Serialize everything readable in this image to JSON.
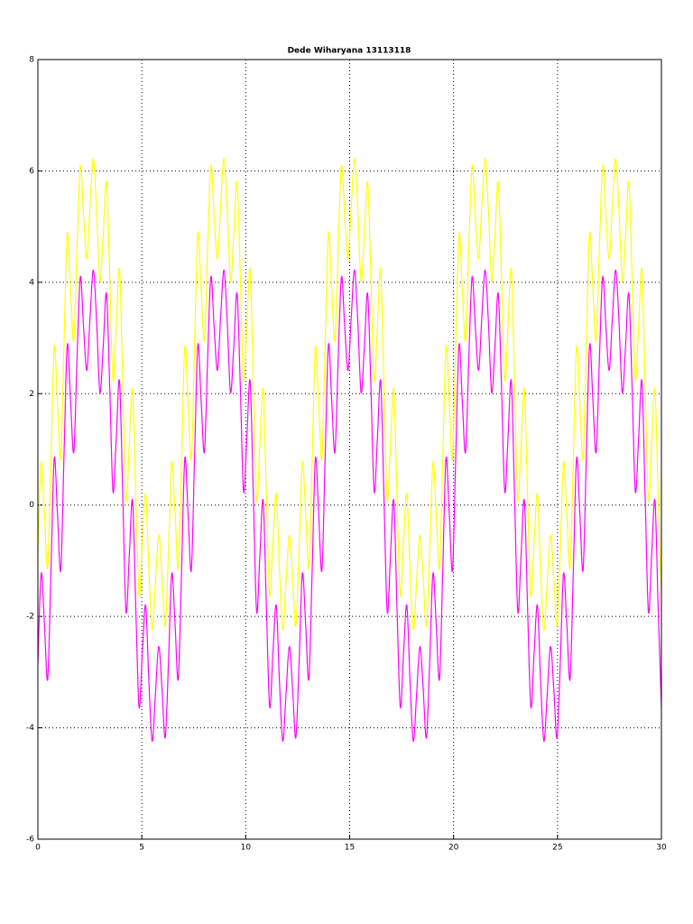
{
  "chart_data": {
    "type": "line",
    "title": "Dede Wiharyana 13113118",
    "x": [
      0,
      0.157,
      0.314,
      0.471,
      0.628,
      0.785,
      0.942,
      1.1,
      1.257,
      1.414,
      1.571,
      1.728,
      1.885,
      2.042,
      2.199,
      2.356,
      2.513,
      2.67,
      2.827,
      2.985,
      3.142,
      3.299,
      3.456,
      3.613,
      3.77,
      3.927,
      4.084,
      4.241,
      4.398,
      4.555,
      4.712,
      4.869,
      5.027,
      5.184,
      5.341,
      5.498,
      5.655,
      5.812,
      5.969,
      6.126,
      6.283,
      6.44,
      6.597,
      6.754,
      6.912,
      7.069,
      7.226,
      7.383,
      7.54,
      7.697,
      7.854,
      8.011,
      8.168,
      8.325,
      8.482,
      8.639,
      8.796,
      8.954,
      9.111,
      9.268,
      9.425,
      9.582,
      9.739,
      9.896,
      10.053,
      10.21,
      10.367,
      10.524,
      10.681,
      10.838,
      10.996,
      11.153,
      11.31,
      11.467,
      11.624,
      11.781,
      11.938,
      12.095,
      12.252,
      12.409,
      12.566,
      12.723,
      12.881,
      13.038,
      13.195,
      13.352,
      13.509,
      13.666,
      13.823,
      13.98,
      14.137,
      14.294,
      14.451,
      14.608,
      14.765,
      14.923,
      15.08,
      15.237,
      15.394,
      15.551,
      15.708,
      15.865,
      16.022,
      16.179,
      16.336,
      16.493,
      16.65,
      16.808,
      16.965,
      17.122,
      17.279,
      17.436,
      17.593,
      17.75,
      17.907,
      18.064,
      18.221,
      18.378,
      18.535,
      18.692,
      18.85,
      19.007,
      19.164,
      19.321,
      19.478,
      19.635,
      19.792,
      19.949,
      20.106,
      20.263,
      20.42,
      20.577,
      20.735,
      20.892,
      21.049,
      21.206,
      21.363,
      21.52,
      21.677,
      21.834,
      21.991,
      22.148,
      22.305,
      22.462,
      22.619,
      22.777,
      22.934,
      23.091,
      23.248,
      23.405,
      23.562,
      23.719,
      23.876,
      24.033,
      24.19,
      24.347,
      24.504,
      24.662,
      24.819,
      24.976,
      25.133,
      25.29,
      25.447,
      25.604,
      25.761,
      25.918,
      26.075,
      26.232,
      26.389,
      26.546,
      26.704,
      26.861,
      27.018,
      27.175,
      27.332,
      27.489,
      27.646,
      27.803,
      27.96,
      28.117,
      28.274,
      28.431,
      28.588,
      28.746,
      28.903,
      29.06,
      29.217,
      29.374,
      29.531,
      29.688,
      29.845,
      30.002
    ],
    "series": [
      {
        "color": "#ffff00",
        "values": [
          -0.84,
          0.77,
          -0.13,
          -1.13,
          0.8,
          2.84,
          1.84,
          0.83,
          2.9,
          4.88,
          3.87,
          2.95,
          4.65,
          6.1,
          5.18,
          4.42,
          5.4,
          6.22,
          5.28,
          4.02,
          4.84,
          5.8,
          4.13,
          2.24,
          3.2,
          4.23,
          2.16,
          0.08,
          1.1,
          2.08,
          0.13,
          -1.63,
          -0.65,
          0.2,
          -1.18,
          -2.24,
          -1.4,
          -0.54,
          -1.28,
          -2.18,
          -0.84,
          0.77,
          -0.13,
          -1.13,
          0.8,
          2.84,
          1.84,
          0.83,
          2.9,
          4.88,
          3.87,
          2.95,
          4.65,
          6.1,
          5.18,
          4.42,
          5.4,
          6.22,
          5.28,
          4.02,
          4.84,
          5.8,
          4.13,
          2.24,
          3.2,
          4.23,
          2.16,
          0.08,
          1.1,
          2.08,
          0.13,
          -1.63,
          -0.65,
          0.2,
          -1.18,
          -2.24,
          -1.4,
          -0.54,
          -1.28,
          -2.18,
          -0.84,
          0.77,
          -0.13,
          -1.13,
          0.8,
          2.84,
          1.84,
          0.83,
          2.9,
          4.88,
          3.87,
          2.95,
          4.65,
          6.1,
          5.18,
          4.42,
          5.4,
          6.22,
          5.28,
          4.02,
          4.84,
          5.8,
          4.13,
          2.24,
          3.2,
          4.23,
          2.16,
          0.08,
          1.1,
          2.08,
          0.13,
          -1.63,
          -0.65,
          0.2,
          -1.18,
          -2.24,
          -1.4,
          -0.54,
          -1.28,
          -2.18,
          -0.84,
          0.77,
          -0.13,
          -1.13,
          0.8,
          2.84,
          1.84,
          0.83,
          2.9,
          4.88,
          3.87,
          2.95,
          4.65,
          6.1,
          5.18,
          4.42,
          5.4,
          6.22,
          5.28,
          4.02,
          4.84,
          5.8,
          4.13,
          2.24,
          3.2,
          4.23,
          2.16,
          0.08,
          1.1,
          2.08,
          0.13,
          -1.63,
          -0.65,
          0.2,
          -1.18,
          -2.24,
          -1.4,
          -0.54,
          -1.28,
          -2.18,
          -0.84,
          0.77,
          -0.13,
          -1.13,
          0.8,
          2.84,
          1.84,
          0.83,
          2.9,
          4.88,
          3.87,
          2.95,
          4.65,
          6.1,
          5.18,
          4.42,
          5.4,
          6.22,
          5.28,
          4.02,
          4.84,
          5.8,
          4.13,
          2.24,
          3.2,
          4.23,
          2.16,
          0.08,
          1.1,
          2.08,
          0.13,
          -1.63
        ]
      },
      {
        "color": "#ff00ff",
        "values": [
          -2.84,
          -1.23,
          -2.13,
          -3.13,
          -1.2,
          0.84,
          -0.16,
          -1.17,
          0.9,
          2.88,
          1.87,
          0.95,
          2.65,
          4.1,
          3.18,
          2.42,
          3.4,
          4.22,
          3.28,
          2.02,
          2.84,
          3.8,
          2.13,
          0.24,
          1.2,
          2.23,
          0.16,
          -1.92,
          -0.9,
          0.08,
          -1.87,
          -3.63,
          -2.65,
          -1.8,
          -3.18,
          -4.24,
          -3.4,
          -2.54,
          -3.28,
          -4.18,
          -2.84,
          -1.23,
          -2.13,
          -3.13,
          -1.2,
          0.84,
          -0.16,
          -1.17,
          0.9,
          2.88,
          1.87,
          0.95,
          2.65,
          4.1,
          3.18,
          2.42,
          3.4,
          4.22,
          3.28,
          2.02,
          2.84,
          3.8,
          2.13,
          0.24,
          1.2,
          2.23,
          0.16,
          -1.92,
          -0.9,
          0.08,
          -1.87,
          -3.63,
          -2.65,
          -1.8,
          -3.18,
          -4.24,
          -3.4,
          -2.54,
          -3.28,
          -4.18,
          -2.84,
          -1.23,
          -2.13,
          -3.13,
          -1.2,
          0.84,
          -0.16,
          -1.17,
          0.9,
          2.88,
          1.87,
          0.95,
          2.65,
          4.1,
          3.18,
          2.42,
          3.4,
          4.22,
          3.28,
          2.02,
          2.84,
          3.8,
          2.13,
          0.24,
          1.2,
          2.23,
          0.16,
          -1.92,
          -0.9,
          0.08,
          -1.87,
          -3.63,
          -2.65,
          -1.8,
          -3.18,
          -4.24,
          -3.4,
          -2.54,
          -3.28,
          -4.18,
          -2.84,
          -1.23,
          -2.13,
          -3.13,
          -1.2,
          0.84,
          -0.16,
          -1.17,
          0.9,
          2.88,
          1.87,
          0.95,
          2.65,
          4.1,
          3.18,
          2.42,
          3.4,
          4.22,
          3.28,
          2.02,
          2.84,
          3.8,
          2.13,
          0.24,
          1.2,
          2.23,
          0.16,
          -1.92,
          -0.9,
          0.08,
          -1.87,
          -3.63,
          -2.65,
          -1.8,
          -3.18,
          -4.24,
          -3.4,
          -2.54,
          -3.28,
          -4.18,
          -2.84,
          -1.23,
          -2.13,
          -3.13,
          -1.2,
          0.84,
          -0.16,
          -1.17,
          0.9,
          2.88,
          1.87,
          0.95,
          2.65,
          4.1,
          3.18,
          2.42,
          3.4,
          4.22,
          3.28,
          2.02,
          2.84,
          3.8,
          2.13,
          0.24,
          1.2,
          2.23,
          0.16,
          -1.92,
          -0.9,
          0.08,
          -1.87,
          -3.63
        ]
      }
    ],
    "xlim": [
      0,
      30
    ],
    "xticks": [
      0,
      5,
      10,
      15,
      20,
      25,
      30
    ],
    "ylim": [
      -6,
      8
    ],
    "yticks": [
      -6,
      -4,
      -2,
      0,
      2,
      4,
      6,
      8
    ],
    "grid": true
  }
}
